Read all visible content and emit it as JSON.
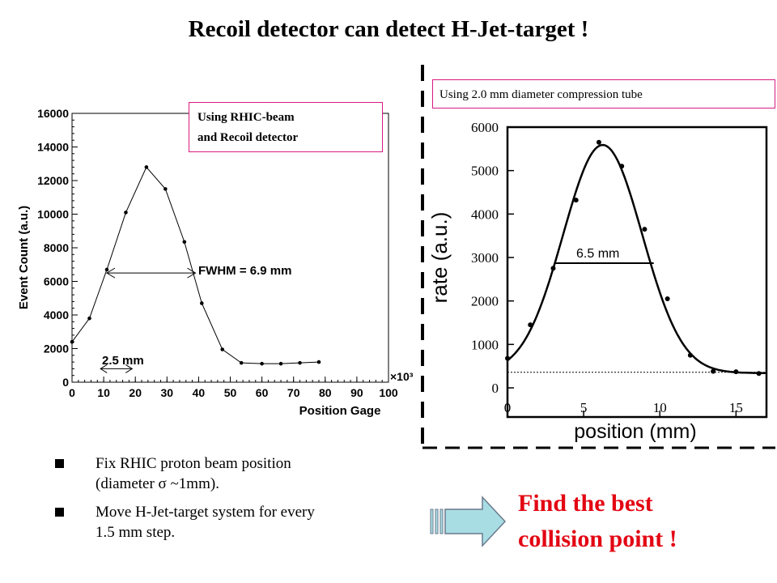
{
  "title": "Recoil detector can detect H-Jet-target !",
  "left_label": [
    "Using RHIC-beam",
    "and Recoil detector"
  ],
  "right_label": "Using 2.0 mm diameter compression tube",
  "bullets": [
    [
      "Fix RHIC proton beam position",
      "(diameter σ ~1mm)."
    ],
    [
      "Move H-Jet-target system for every",
      "1.5 mm step."
    ]
  ],
  "find": [
    "Find the best",
    "collision point !"
  ],
  "colors": {
    "title": "#000000",
    "box_border": "#d81b82",
    "find": "#e30613",
    "arrow_fill": "#a8dde4",
    "arrow_stroke": "#6b7a8c"
  },
  "arrow_icon": "right-arrow-icon",
  "chart_data": [
    {
      "type": "line",
      "xlabel": "Position Gage",
      "ylabel": "Event Count (a.u.)",
      "xlim": [
        0,
        100
      ],
      "ylim": [
        0,
        16000
      ],
      "xticks": [
        0,
        10,
        20,
        30,
        40,
        50,
        60,
        70,
        80,
        90,
        100
      ],
      "yticks": [
        0,
        2000,
        4000,
        6000,
        8000,
        10000,
        12000,
        14000,
        16000
      ],
      "x_multiplier": "×10³",
      "x": [
        0,
        5.5,
        11,
        17,
        23.5,
        29.5,
        35.5,
        41,
        47.5,
        53.5,
        60,
        66,
        72,
        78
      ],
      "y": [
        2400,
        3800,
        6700,
        10100,
        12800,
        11500,
        8350,
        4700,
        1950,
        1150,
        1100,
        1100,
        1150,
        1200
      ],
      "annotations": [
        {
          "text": "FWHM = 6.9 mm",
          "x_range": [
            11,
            39
          ],
          "y": 6500
        },
        {
          "text": "2.5 mm",
          "x_range": [
            9,
            19
          ],
          "y": 800
        }
      ]
    },
    {
      "type": "scatter",
      "xlabel": "position  (mm)",
      "ylabel": "rate  (a.u.)",
      "xlim": [
        0,
        17
      ],
      "ylim": [
        0,
        6000
      ],
      "xticks": [
        0,
        5,
        10,
        15
      ],
      "yticks": [
        0,
        1000,
        2000,
        3000,
        4000,
        5000,
        6000
      ],
      "x": [
        0,
        1.5,
        3,
        4.5,
        6,
        7.5,
        9,
        10.5,
        12,
        13.5,
        15,
        16.5
      ],
      "y": [
        680,
        1450,
        2750,
        4320,
        5650,
        5100,
        3650,
        2050,
        750,
        380,
        370,
        330
      ],
      "fit": {
        "amplitude": 5250,
        "center": 6.25,
        "sigma": 2.6,
        "baseline": 340
      },
      "baseline_level": 340,
      "annotations": [
        {
          "text": "6.5  mm",
          "x_range": [
            3.1,
            9.6
          ],
          "y": 2870
        }
      ]
    }
  ]
}
